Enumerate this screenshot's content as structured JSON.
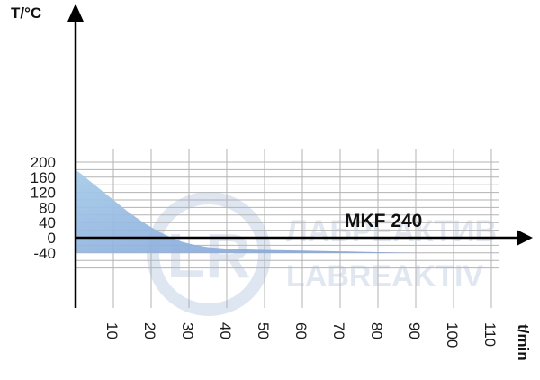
{
  "chart_data": {
    "type": "area",
    "title": "",
    "xlabel": "t/min",
    "ylabel": "T/°C",
    "annotation": "MKF 240",
    "xlim": [
      0,
      115
    ],
    "ylim": [
      -80,
      200
    ],
    "x_ticks": [
      10,
      20,
      30,
      40,
      50,
      60,
      70,
      80,
      90,
      100,
      110
    ],
    "y_ticks": [
      200,
      160,
      120,
      80,
      40,
      0,
      -40
    ],
    "grid": true,
    "series": [
      {
        "x": [
          0,
          2,
          4,
          6,
          8,
          10,
          12,
          14,
          16,
          18,
          20,
          22,
          25,
          28,
          31,
          35,
          40,
          45,
          50,
          60,
          70,
          80,
          90
        ],
        "y": [
          180,
          165,
          148,
          132,
          116,
          100,
          84,
          68,
          54,
          40,
          28,
          16,
          2,
          -10,
          -18,
          -25,
          -29,
          -31,
          -32,
          -34,
          -36,
          -38,
          -40
        ]
      }
    ],
    "fill_baseline": -40,
    "colors": {
      "fill_top": "#9ec5e6",
      "fill_bottom": "#7f9fd6",
      "grid": "#b3b3b3",
      "axis": "#000000"
    }
  },
  "watermark": {
    "line1": "ЛАБРЕАКТИВ",
    "line2": "LABREAKTIV",
    "logo_text": "LR"
  }
}
